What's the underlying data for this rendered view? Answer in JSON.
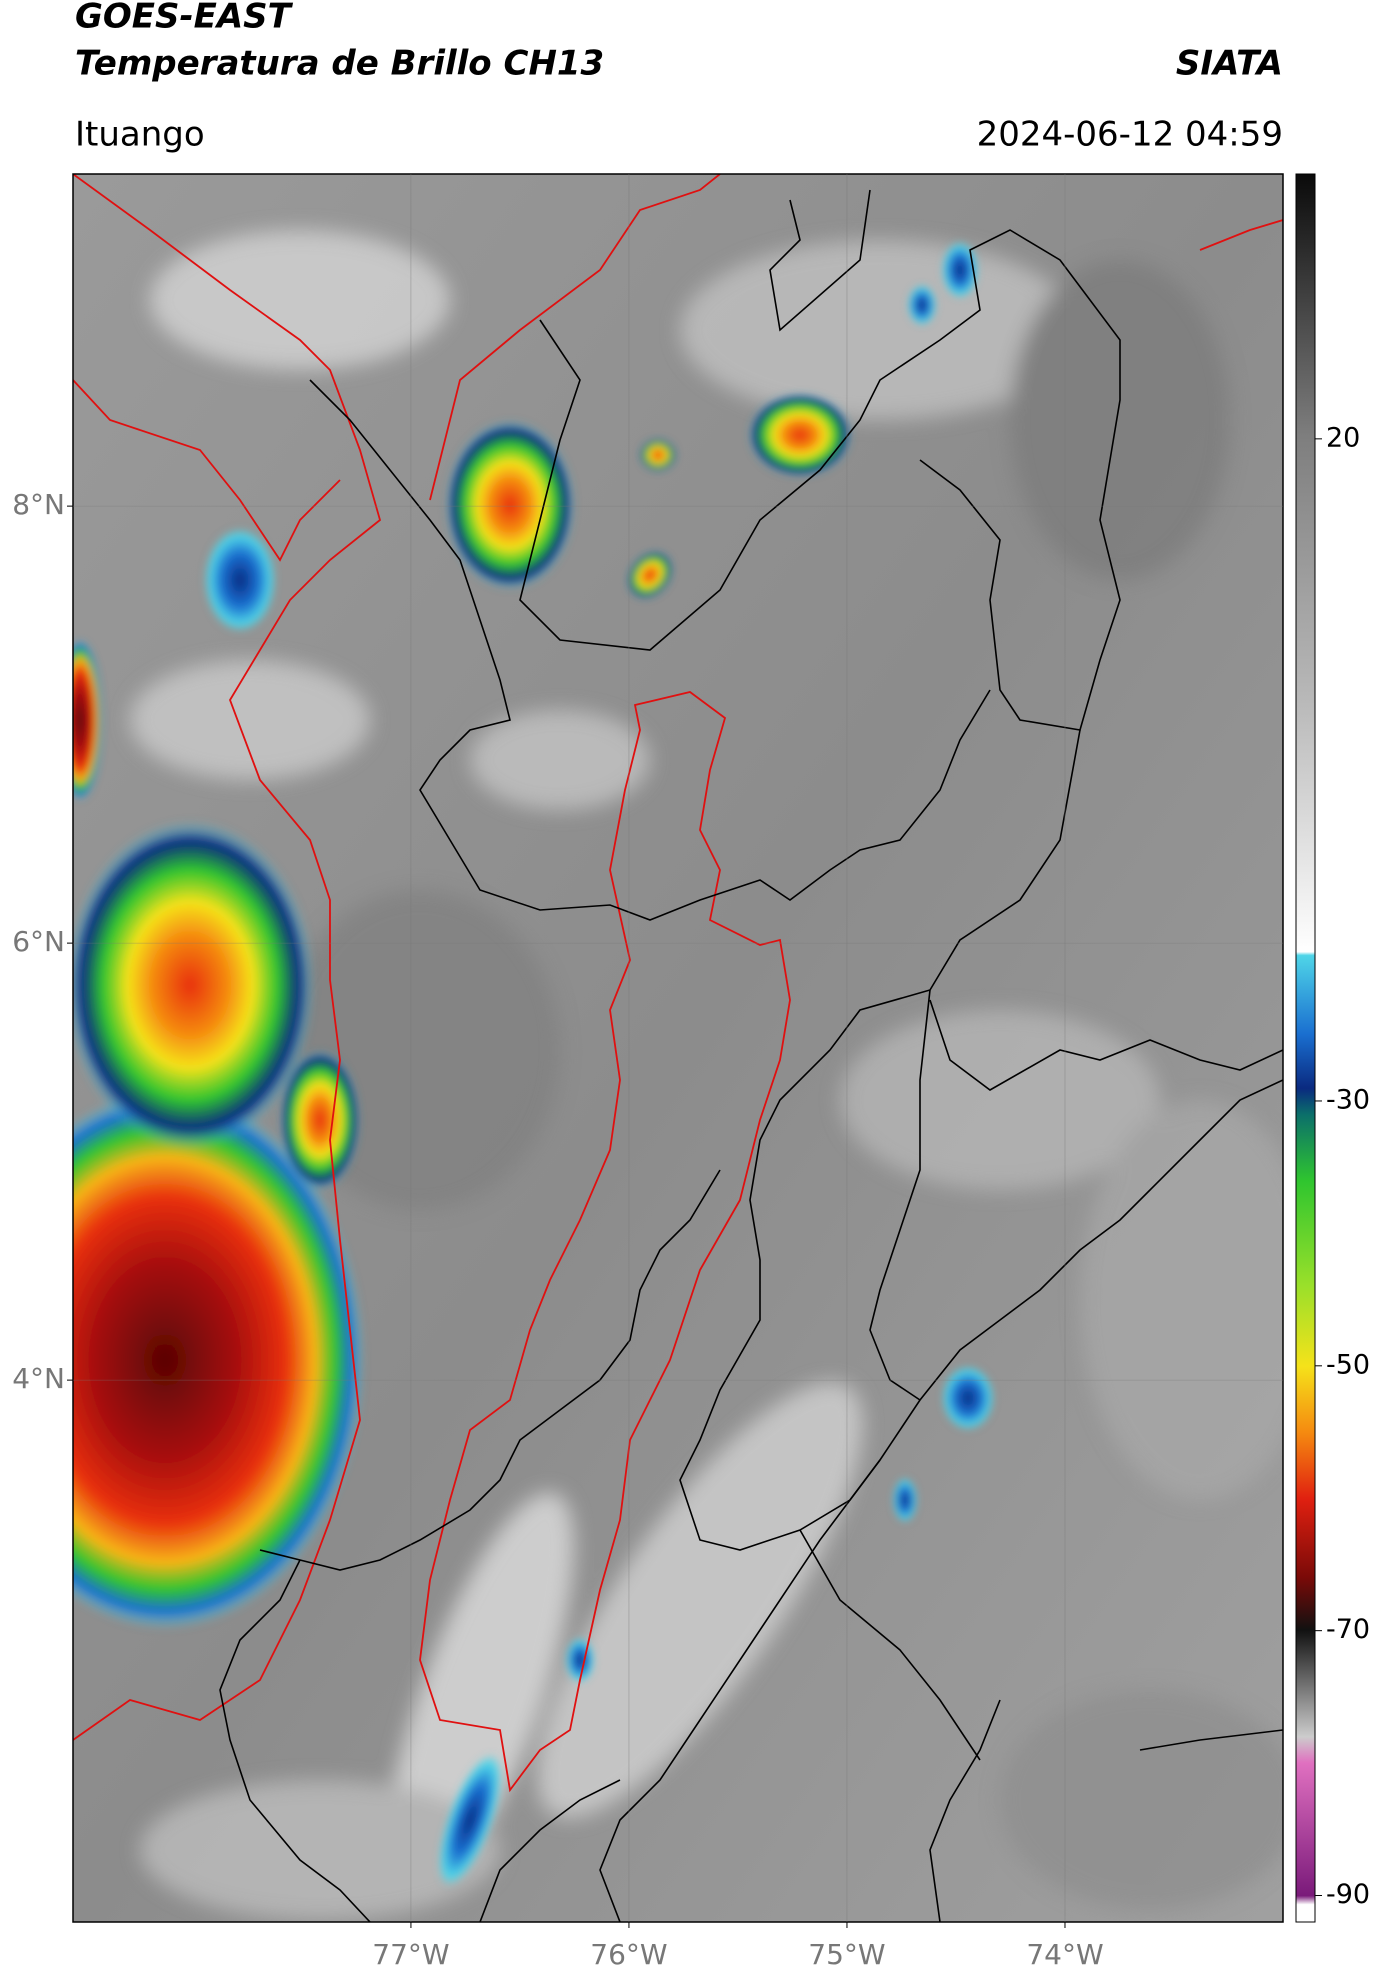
{
  "header": {
    "title": "GOES-EAST",
    "subtitle": "Temperatura de Brillo CH13",
    "source": "SIATA",
    "location": "Ituango",
    "datetime": "2024-06-12 04:59"
  },
  "map": {
    "xlim": [
      -78.55,
      -73.0
    ],
    "ylim": [
      1.52,
      9.52
    ],
    "xticks": [
      {
        "value": -77,
        "label": "77°W"
      },
      {
        "value": -76,
        "label": "76°W"
      },
      {
        "value": -75,
        "label": "75°W"
      },
      {
        "value": -74,
        "label": "74°W"
      }
    ],
    "yticks": [
      {
        "value": 8,
        "label": "8°N"
      },
      {
        "value": 6,
        "label": "6°N"
      },
      {
        "value": 4,
        "label": "4°N"
      }
    ],
    "grid": true
  },
  "colorbar": {
    "lim": [
      -92,
      40
    ],
    "ticks": [
      20,
      -30,
      -50,
      -70,
      -90
    ]
  }
}
